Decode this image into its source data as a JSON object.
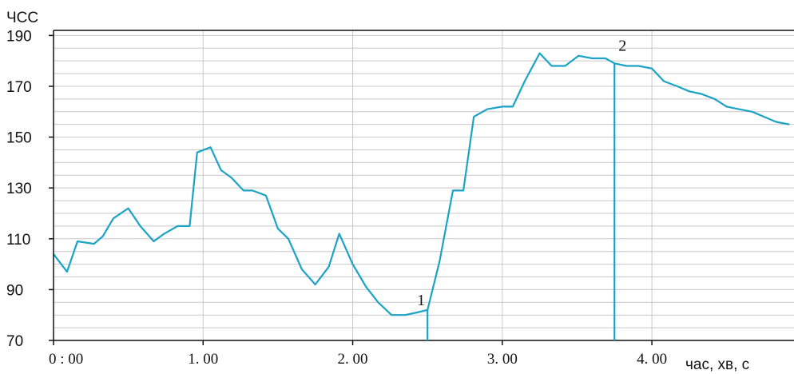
{
  "chart_data": {
    "type": "line",
    "ylabel": "ЧСС",
    "xlabel": "час, хв, с",
    "ylim": [
      70,
      192
    ],
    "xlim": [
      0,
      4.95
    ],
    "yticks": [
      70,
      90,
      110,
      130,
      150,
      170,
      190
    ],
    "xticks": [
      {
        "value": 0,
        "label": "0 : 00"
      },
      {
        "value": 1,
        "label": "1. 00"
      },
      {
        "value": 2,
        "label": "2. 00"
      },
      {
        "value": 3,
        "label": "3. 00"
      },
      {
        "value": 4,
        "label": "4. 00"
      }
    ],
    "grid": true,
    "line_color": "#1ba3c6",
    "x": [
      0,
      0.09,
      0.16,
      0.27,
      0.33,
      0.4,
      0.5,
      0.58,
      0.67,
      0.74,
      0.83,
      0.91,
      0.96,
      1.05,
      1.12,
      1.19,
      1.27,
      1.33,
      1.42,
      1.5,
      1.57,
      1.66,
      1.75,
      1.84,
      1.91,
      2.0,
      2.09,
      2.17,
      2.26,
      2.35,
      2.43,
      2.5,
      2.58,
      2.67,
      2.74,
      2.81,
      2.9,
      3.0,
      3.07,
      3.15,
      3.25,
      3.33,
      3.42,
      3.51,
      3.6,
      3.69,
      3.75,
      3.83,
      3.91,
      4.0,
      4.08,
      4.17,
      4.25,
      4.33,
      4.42,
      4.5,
      4.58,
      4.67,
      4.75,
      4.83,
      4.92
    ],
    "y": [
      104,
      97,
      109,
      108,
      111,
      118,
      122,
      115,
      109,
      112,
      115,
      115,
      144,
      146,
      137,
      134,
      129,
      129,
      127,
      114,
      110,
      98,
      92,
      99,
      112,
      100,
      91,
      85,
      80,
      80,
      81,
      82,
      101,
      129,
      129,
      158,
      161,
      162,
      162,
      172,
      183,
      178,
      178,
      182,
      181,
      181,
      179,
      178,
      178,
      177,
      172,
      170,
      168,
      167,
      165,
      162,
      161,
      160,
      158,
      156,
      155
    ],
    "annotations": [
      {
        "label": "1",
        "x": 2.5,
        "y": 82
      },
      {
        "label": "2",
        "x": 3.75,
        "y": 179
      }
    ]
  }
}
